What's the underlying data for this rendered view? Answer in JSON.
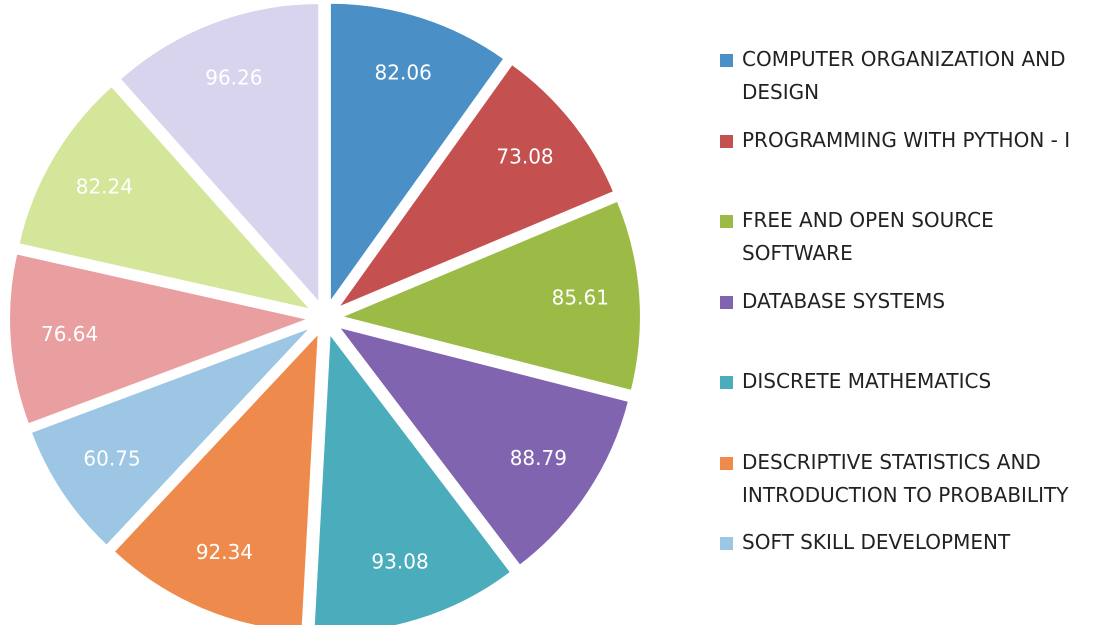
{
  "chart_data": {
    "type": "pie",
    "categories": [
      "COMPUTER ORGANIZATION AND DESIGN",
      "PROGRAMMING WITH PYTHON - I",
      "FREE AND OPEN SOURCE SOFTWARE",
      "DATABASE SYSTEMS",
      "DISCRETE MATHEMATICS",
      "DESCRIPTIVE STATISTICS AND INTRODUCTION TO PROBABILITY",
      "SOFT SKILL DEVELOPMENT",
      null,
      null,
      null
    ],
    "values": [
      82.06,
      73.08,
      85.61,
      88.79,
      93.08,
      92.34,
      60.75,
      76.64,
      82.24,
      96.26
    ],
    "colors": [
      "#4a8fc6",
      "#c4504f",
      "#9bbb46",
      "#8064b0",
      "#4bacbc",
      "#ee8a4c",
      "#9cc6e4",
      "#e99ea0",
      "#d4e69a",
      "#d9d4ee"
    ]
  }
}
